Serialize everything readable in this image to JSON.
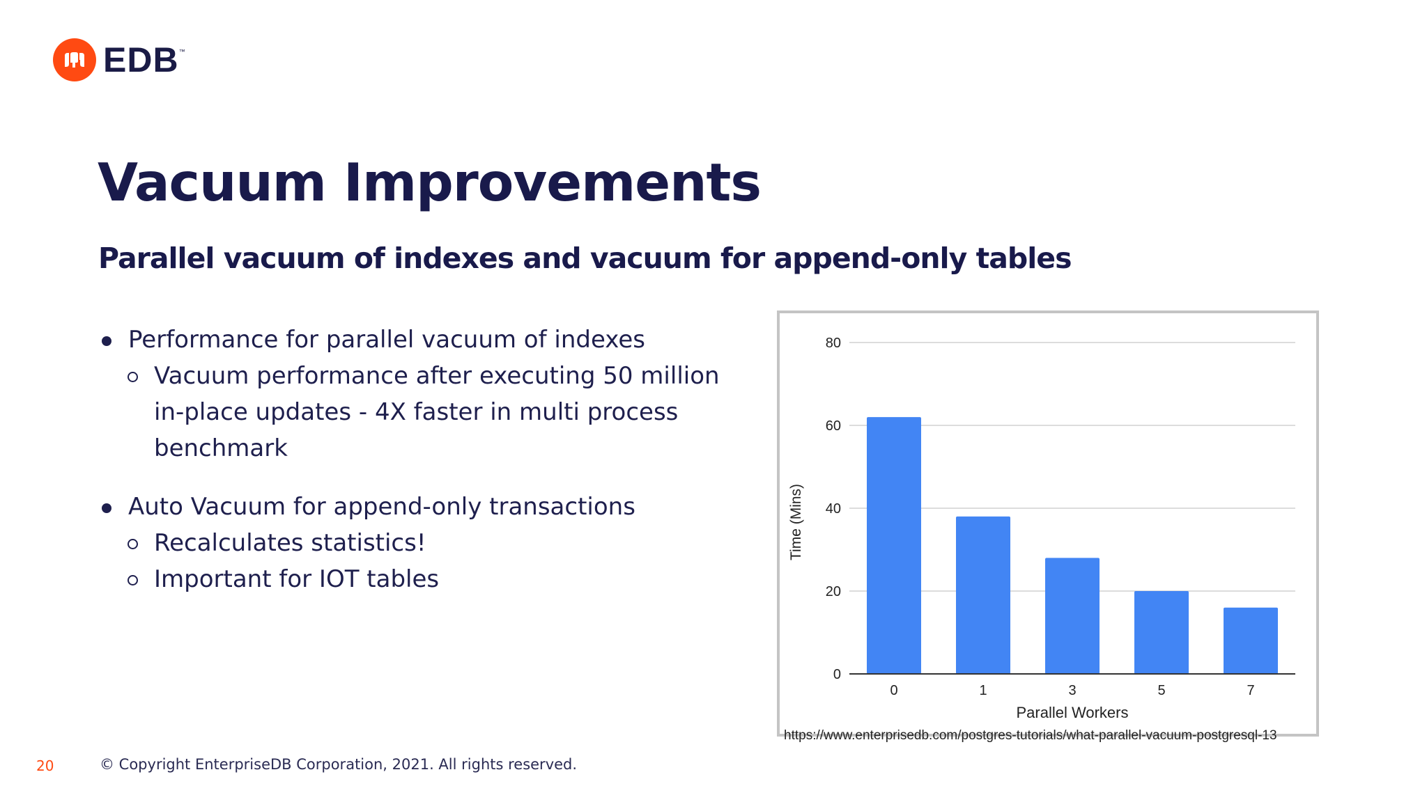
{
  "logo": {
    "text": "EDB",
    "trademark": "™",
    "brand_color": "#ff4a12",
    "icon": "edb-elephant-icon"
  },
  "slide": {
    "title": "Vacuum Improvements",
    "subtitle": "Parallel vacuum of indexes and vacuum for append-only tables",
    "bullets": [
      {
        "text": "Performance for parallel vacuum of indexes",
        "sub": [
          "Vacuum performance after executing 50 million",
          "in-place updates - 4X faster in multi process benchmark"
        ]
      },
      {
        "text": "Auto Vacuum for append-only transactions",
        "sub": [
          "Recalculates statistics!",
          "Important for IOT tables"
        ]
      }
    ],
    "source_url": "https://www.enterprisedb.com/postgres-tutorials/what-parallel-vacuum-postgresql-13",
    "page_number": "20",
    "copyright": "© Copyright EnterpriseDB Corporation, 2021. All rights reserved."
  },
  "chart_data": {
    "type": "bar",
    "categories": [
      "0",
      "1",
      "3",
      "5",
      "7"
    ],
    "values": [
      62,
      38,
      28,
      20,
      16
    ],
    "xlabel": "Parallel Workers",
    "ylabel": "Time (Mins)",
    "ylim": [
      0,
      80
    ],
    "yticks": [
      "0",
      "20",
      "40",
      "60",
      "80"
    ],
    "grid": true,
    "bar_color": "#4285f4"
  }
}
